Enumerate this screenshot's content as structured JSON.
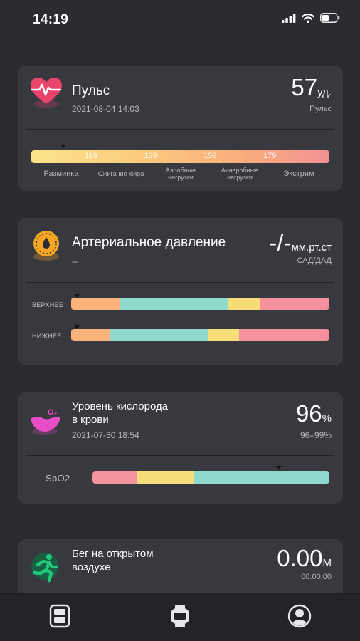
{
  "status": {
    "time": "14:19"
  },
  "pulse": {
    "title": "Пульс",
    "date": "2021-08-04 14:03",
    "value": "57",
    "unit": "уд.",
    "caption": "Пульс",
    "ticks": [
      "119",
      "139",
      "159",
      "179"
    ],
    "zones": [
      {
        "label": "Разминка"
      },
      {
        "label": "Сжигание жира"
      },
      {
        "label": "Аэробные нагрузки"
      },
      {
        "label": "Анаэробные нагрузки"
      },
      {
        "label": "Экстрим"
      }
    ]
  },
  "pressure": {
    "title": "Артериальное давление",
    "date": "--",
    "value": "-/-",
    "unit": "мм.рт.ст",
    "caption": "САД/ДАД",
    "upper_label": "ВЕРХНЕЕ",
    "lower_label": "НИЖНЕЕ"
  },
  "oxygen": {
    "title_line1": "Уровень кислорода",
    "title_line2": "в крови",
    "date": "2021-07-30 18:54",
    "value": "96",
    "unit": "%",
    "range": "96–99%",
    "bar_label": "SpO2",
    "icon_text": "O₂"
  },
  "running": {
    "title_line1": "Бег на открытом",
    "title_line2": "воздухе",
    "value": "0.00",
    "unit": "M",
    "duration": "00:00:00"
  },
  "colors": {
    "background": "#2b2b31",
    "card": "#38383f",
    "heart": "#e9446b",
    "gauge": "#f5a623",
    "oxygen": "#e94ec6",
    "runner": "#1ec97a",
    "bar_orange": "#f9b27a",
    "bar_teal": "#8fd8cc",
    "bar_yellow": "#f7de7b",
    "bar_pink": "#f3919c"
  },
  "icons": {
    "status": [
      "signal-icon",
      "wifi-icon",
      "battery-icon"
    ],
    "tabs": [
      "dashboard-icon",
      "watch-icon",
      "profile-icon"
    ]
  }
}
